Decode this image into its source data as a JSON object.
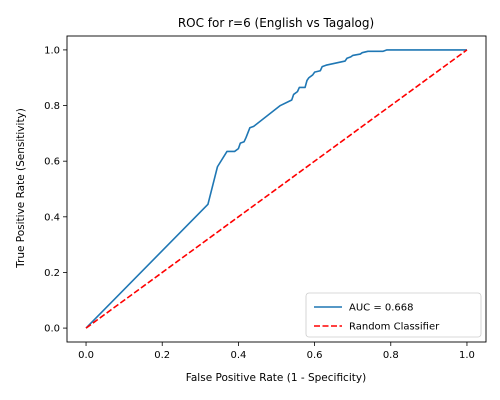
{
  "chart_data": {
    "type": "line",
    "title": "ROC for r=6 (English vs Tagalog)",
    "xlabel": "False Positive Rate (1 - Specificity)",
    "ylabel": "True Positive Rate (Sensitivity)",
    "xlim": [
      -0.05,
      1.05
    ],
    "ylim": [
      -0.05,
      1.05
    ],
    "xticks": [
      "0.0",
      "0.2",
      "0.4",
      "0.6",
      "0.8",
      "1.0"
    ],
    "yticks": [
      "0.0",
      "0.2",
      "0.4",
      "0.6",
      "0.8",
      "1.0"
    ],
    "grid": false,
    "legend_position": "bottom-right",
    "series": [
      {
        "name": "AUC = 0.668",
        "color": "#1f77b4",
        "style": "solid",
        "points": [
          [
            0.0,
            0.0
          ],
          [
            0.32,
            0.445
          ],
          [
            0.345,
            0.58
          ],
          [
            0.37,
            0.635
          ],
          [
            0.39,
            0.635
          ],
          [
            0.4,
            0.645
          ],
          [
            0.405,
            0.665
          ],
          [
            0.415,
            0.67
          ],
          [
            0.42,
            0.685
          ],
          [
            0.43,
            0.72
          ],
          [
            0.44,
            0.725
          ],
          [
            0.51,
            0.8
          ],
          [
            0.54,
            0.82
          ],
          [
            0.545,
            0.84
          ],
          [
            0.555,
            0.85
          ],
          [
            0.56,
            0.865
          ],
          [
            0.575,
            0.865
          ],
          [
            0.58,
            0.89
          ],
          [
            0.585,
            0.9
          ],
          [
            0.595,
            0.91
          ],
          [
            0.6,
            0.92
          ],
          [
            0.615,
            0.925
          ],
          [
            0.62,
            0.94
          ],
          [
            0.63,
            0.945
          ],
          [
            0.68,
            0.96
          ],
          [
            0.685,
            0.97
          ],
          [
            0.695,
            0.975
          ],
          [
            0.7,
            0.98
          ],
          [
            0.72,
            0.985
          ],
          [
            0.725,
            0.99
          ],
          [
            0.74,
            0.995
          ],
          [
            0.78,
            0.995
          ],
          [
            0.79,
            1.0
          ],
          [
            0.81,
            1.0
          ],
          [
            1.0,
            1.0
          ]
        ]
      },
      {
        "name": "Random Classifier",
        "color": "#ff0000",
        "style": "dashed",
        "points": [
          [
            0.0,
            0.0
          ],
          [
            1.0,
            1.0
          ]
        ]
      }
    ]
  }
}
